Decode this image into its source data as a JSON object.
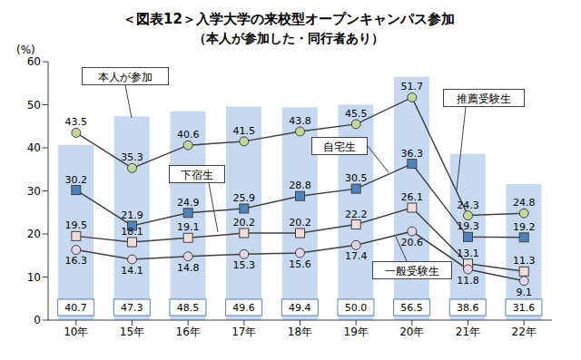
{
  "chart_data": {
    "type": "bar",
    "title": "＜図表12＞入学大学の来校型オープンキャンパス参加",
    "subtitle": "（本人が参加した・同行者あり）",
    "y_label": "(%)",
    "categories": [
      "10年",
      "15年",
      "16年",
      "17年",
      "18年",
      "19年",
      "20年",
      "21年",
      "22年"
    ],
    "series": [
      {
        "name": "本人が参加",
        "type": "bar",
        "color": "#c6d9f0",
        "values": [
          40.7,
          47.3,
          48.5,
          49.6,
          49.4,
          50.0,
          56.5,
          38.6,
          31.6
        ],
        "value_labels": [
          "40.7",
          "47.3",
          "48.5",
          "49.6",
          "49.4",
          "50.0",
          "56.5",
          "38.6",
          "31.6"
        ],
        "data_labels": true
      },
      {
        "name": "推薦受験生",
        "type": "line",
        "color": "#c3d69b",
        "marker": "circle",
        "values": [
          43.5,
          35.3,
          40.6,
          41.5,
          43.8,
          45.5,
          51.7,
          24.3,
          24.8
        ],
        "data_labels": true
      },
      {
        "name": "自宅生",
        "type": "line",
        "color": "#4f81bd",
        "marker": "square",
        "values": [
          30.2,
          21.9,
          24.9,
          25.9,
          28.8,
          30.5,
          36.3,
          19.3,
          19.2
        ],
        "data_labels": true
      },
      {
        "name": "下宿生",
        "type": "line",
        "color": "#f2dcdb",
        "marker": "square",
        "values": [
          19.5,
          18.1,
          19.1,
          20.2,
          20.2,
          22.2,
          26.1,
          13.1,
          11.3
        ],
        "data_labels": true
      },
      {
        "name": "一般受験生",
        "type": "line",
        "color": "#e4d4e8",
        "marker": "circle",
        "values": [
          16.3,
          14.1,
          14.8,
          15.3,
          15.6,
          17.4,
          20.6,
          11.8,
          9.1
        ],
        "data_labels": true
      }
    ],
    "ylim": [
      0,
      60
    ],
    "yticks": [
      0,
      10,
      20,
      30,
      40,
      50,
      60
    ],
    "grid": false
  }
}
